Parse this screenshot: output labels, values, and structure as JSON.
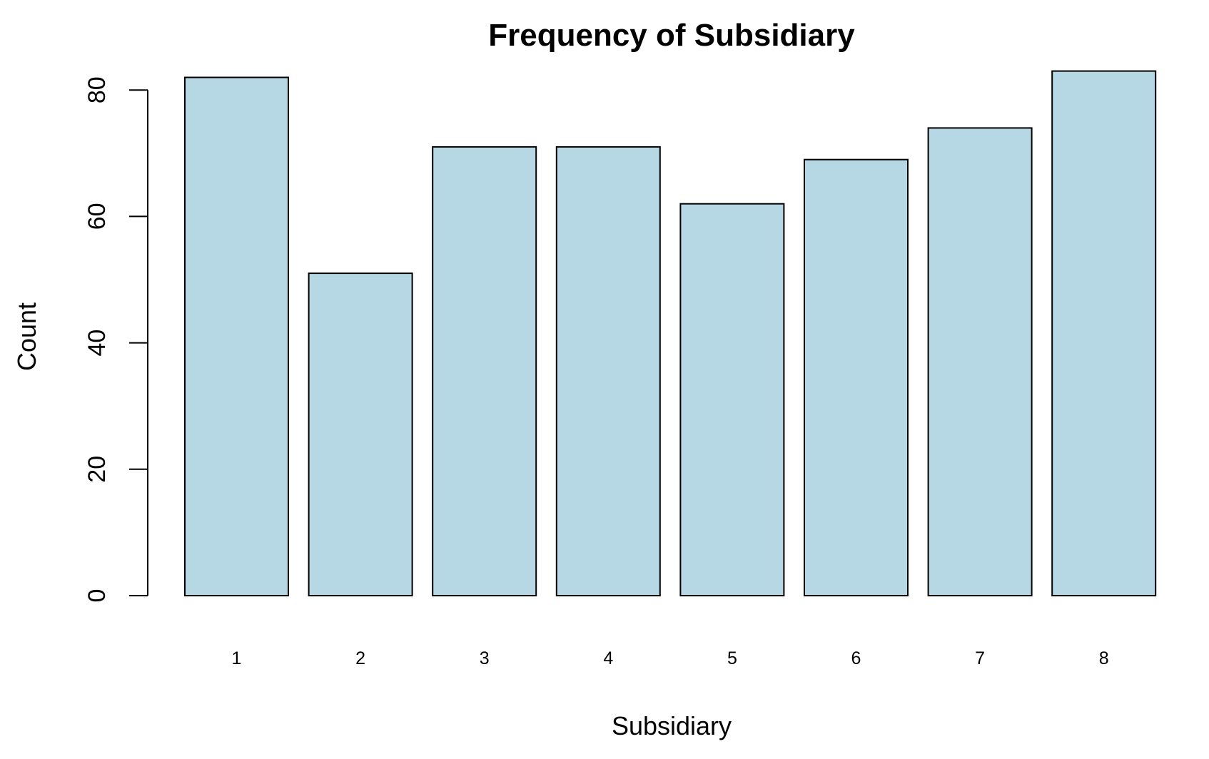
{
  "chart_data": {
    "type": "bar",
    "title": "Frequency of Subsidiary",
    "xlabel": "Subsidiary",
    "ylabel": "Count",
    "categories": [
      "1",
      "2",
      "3",
      "4",
      "5",
      "6",
      "7",
      "8"
    ],
    "values": [
      82,
      51,
      71,
      71,
      62,
      69,
      74,
      83
    ],
    "ylim": [
      0,
      80
    ],
    "yticks": [
      "0",
      "20",
      "40",
      "60",
      "80"
    ],
    "grid": false,
    "legend": "none",
    "colors": {
      "bar_fill": "#b6d8e4",
      "bar_stroke": "#000000",
      "axis": "#000000"
    }
  }
}
